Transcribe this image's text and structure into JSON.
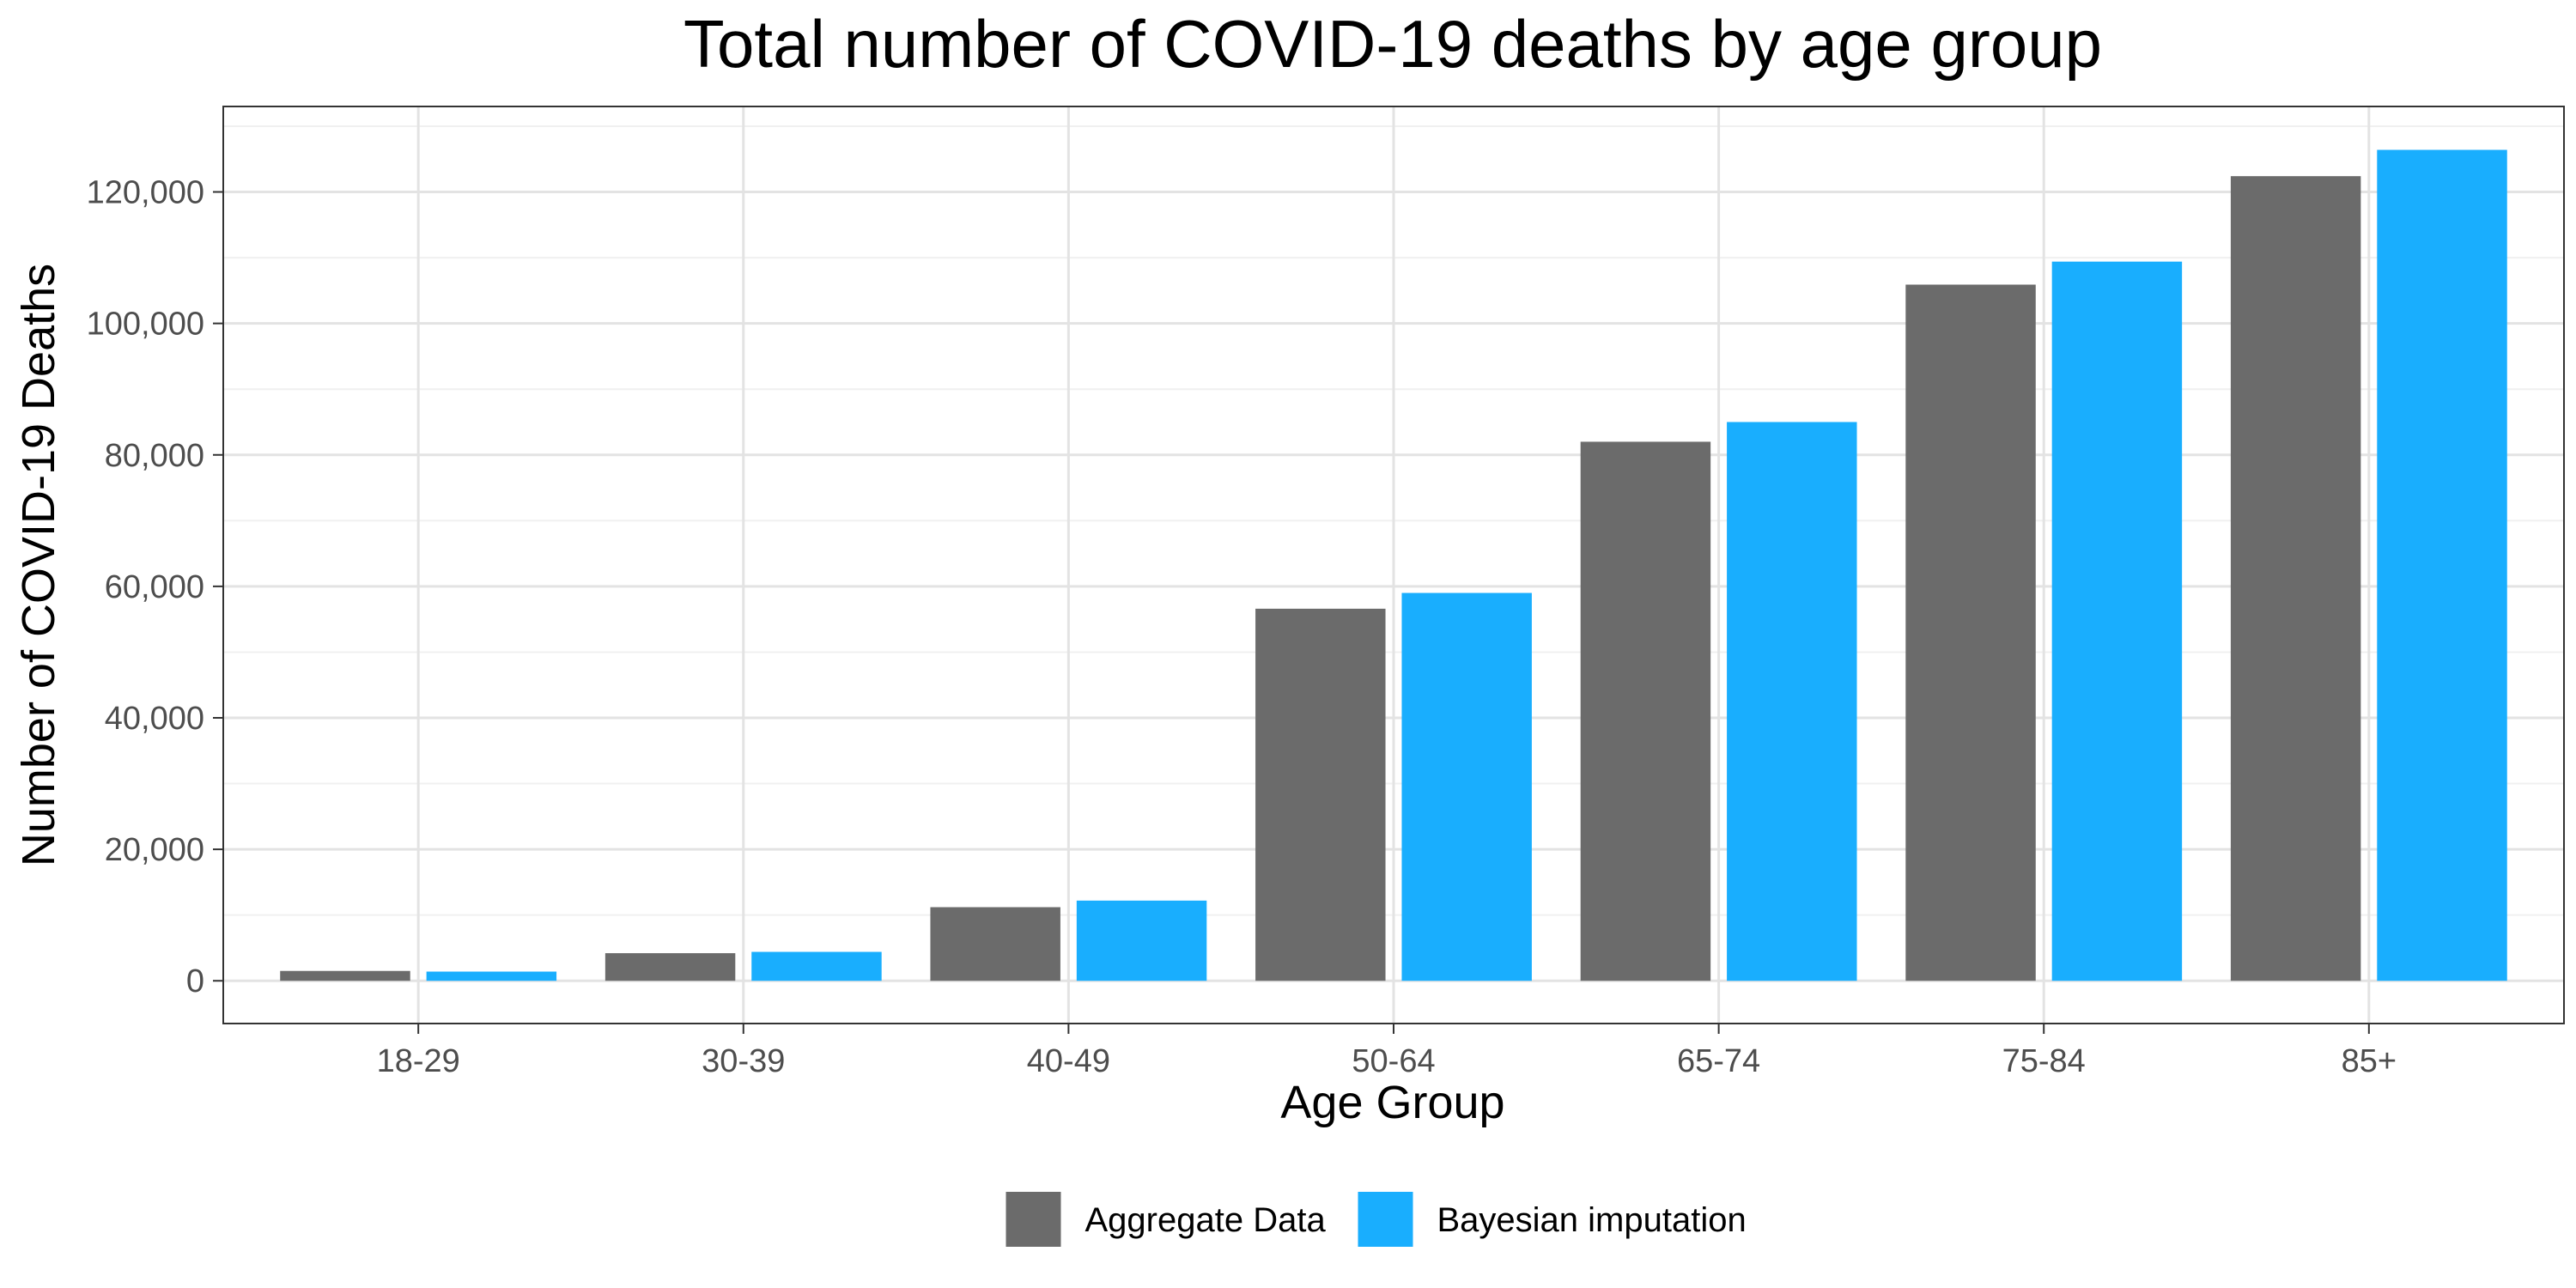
{
  "chart_data": {
    "type": "bar",
    "title": "Total number of COVID-19 deaths by age group",
    "xlabel": "Age Group",
    "ylabel": "Number of COVID-19 Deaths",
    "categories": [
      "18-29",
      "30-39",
      "40-49",
      "50-64",
      "65-74",
      "75-84",
      "85+"
    ],
    "series": [
      {
        "name": "Aggregate Data",
        "color": "#6b6b6b",
        "values": [
          1500,
          4200,
          11200,
          56600,
          82000,
          105900,
          122400
        ]
      },
      {
        "name": "Bayesian imputation",
        "color": "#19aefe",
        "values": [
          1400,
          4400,
          12200,
          59000,
          85000,
          109400,
          126400
        ]
      }
    ],
    "ylim": [
      -6500,
      133000
    ],
    "yticks": [
      0,
      20000,
      40000,
      60000,
      80000,
      100000,
      120000
    ],
    "ytick_labels": [
      "0",
      "20,000",
      "40,000",
      "60,000",
      "80,000",
      "100,000",
      "120,000"
    ],
    "grid": true,
    "legend_position": "bottom"
  }
}
